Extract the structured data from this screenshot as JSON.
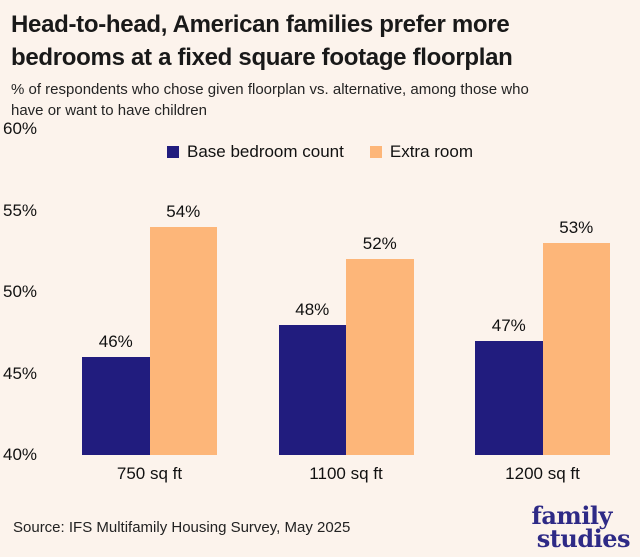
{
  "header": {
    "title_lines": [
      "Head-to-head, American families prefer more",
      "bedrooms at a fixed square footage floorplan"
    ],
    "subtitle_lines": [
      "% of respondents who chose given floorplan vs. alternative, among those who",
      "have or want to have children"
    ]
  },
  "chart_data": {
    "type": "bar",
    "categories": [
      "750 sq ft",
      "1100 sq ft",
      "1200 sq ft"
    ],
    "series": [
      {
        "name": "Base bedroom count",
        "color": "#211C7E",
        "values": [
          46,
          48,
          47
        ]
      },
      {
        "name": "Extra room",
        "color": "#FDB679",
        "values": [
          54,
          52,
          53
        ]
      }
    ],
    "title": "Head-to-head, American families prefer more bedrooms at a fixed square footage floorplan",
    "xlabel": "",
    "ylabel": "",
    "ylim": [
      40,
      60
    ],
    "yticks": [
      40,
      45,
      50,
      55,
      60
    ],
    "ytick_suffix": "%",
    "value_label_suffix": "%",
    "grid": false,
    "legend_position": "top-center"
  },
  "footer": {
    "source": "Source: IFS Multifamily Housing Survey, May 2025",
    "logo_lines": [
      "family",
      "studies"
    ]
  },
  "colors": {
    "background": "#FCF3EC",
    "base_bedroom": "#211C7E",
    "extra_room": "#FDB679",
    "logo": "#2E2A86",
    "text": "#111111"
  }
}
